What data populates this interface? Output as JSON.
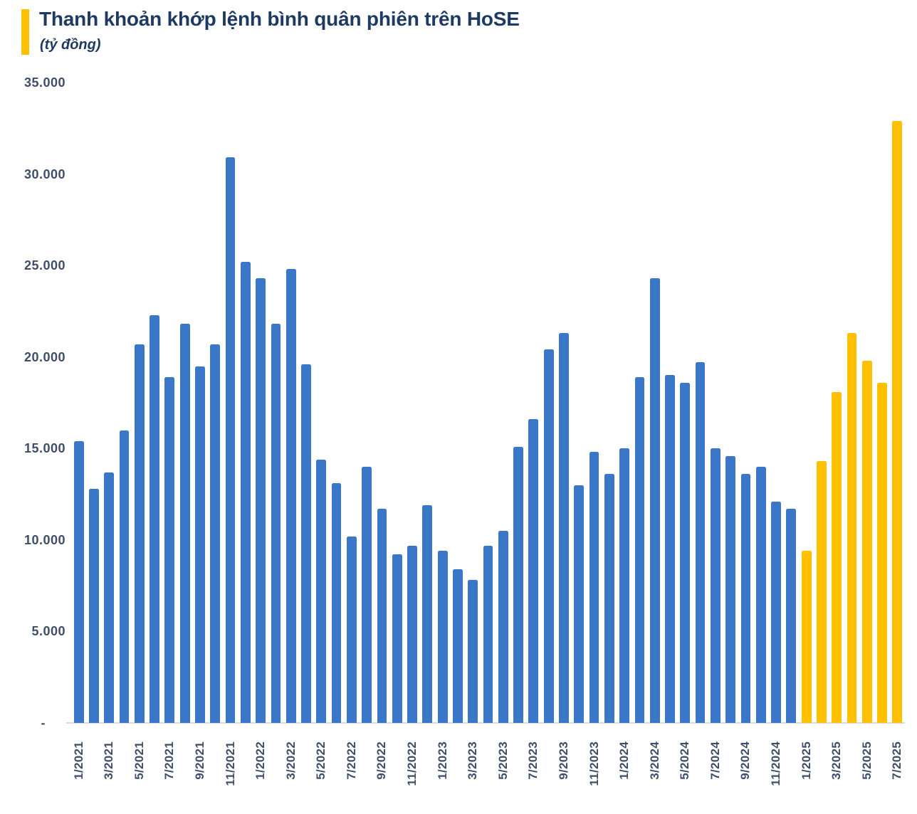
{
  "header": {
    "title": "Thanh khoản khớp lệnh bình quân phiên trên HoSE",
    "subtitle": "(tỷ đồng)",
    "accent_color": "#FFC003"
  },
  "chart_data": {
    "type": "bar",
    "title": "Thanh khoản khớp lệnh bình quân phiên trên HoSE",
    "unit": "tỷ đồng",
    "grid": "off",
    "legend": "none",
    "ylim": [
      0,
      35000
    ],
    "y_tick_interval": 5000,
    "y_tick_values": [
      35000,
      30000,
      25000,
      20000,
      15000,
      10000,
      5000,
      0
    ],
    "y_tick_labels": [
      "35.000",
      "30.000",
      "25.000",
      "20.000",
      "15.000",
      "10.000",
      "5.000",
      "-"
    ],
    "x_tick_labels": [
      "1/2021",
      "3/2021",
      "5/2021",
      "7/2021",
      "9/2021",
      "11/2021",
      "1/2022",
      "3/2022",
      "5/2022",
      "7/2022",
      "9/2022",
      "11/2022",
      "1/2023",
      "3/2023",
      "5/2023",
      "7/2023",
      "9/2023",
      "11/2023",
      "1/2024",
      "3/2024",
      "5/2024",
      "7/2024",
      "9/2024",
      "11/2024",
      "1/2025",
      "3/2025",
      "5/2025",
      "7/2025"
    ],
    "categories": [
      "1/2021",
      "2/2021",
      "3/2021",
      "4/2021",
      "5/2021",
      "6/2021",
      "7/2021",
      "8/2021",
      "9/2021",
      "10/2021",
      "11/2021",
      "12/2021",
      "1/2022",
      "2/2022",
      "3/2022",
      "4/2022",
      "5/2022",
      "6/2022",
      "7/2022",
      "8/2022",
      "9/2022",
      "10/2022",
      "11/2022",
      "12/2022",
      "1/2023",
      "2/2023",
      "3/2023",
      "4/2023",
      "5/2023",
      "6/2023",
      "7/2023",
      "8/2023",
      "9/2023",
      "10/2023",
      "11/2023",
      "12/2023",
      "1/2024",
      "2/2024",
      "3/2024",
      "4/2024",
      "5/2024",
      "6/2024",
      "7/2024",
      "8/2024",
      "9/2024",
      "10/2024",
      "11/2024",
      "12/2024",
      "1/2025",
      "2/2025",
      "3/2025",
      "4/2025",
      "5/2025",
      "6/2025",
      "7/2025"
    ],
    "values": [
      15400,
      12800,
      13700,
      16000,
      20700,
      22300,
      18900,
      21800,
      19500,
      20700,
      30900,
      25200,
      24300,
      21800,
      24800,
      19600,
      14400,
      13100,
      10200,
      14000,
      11700,
      9200,
      9700,
      11900,
      9400,
      8400,
      7800,
      9700,
      10500,
      15100,
      16600,
      20400,
      21300,
      13000,
      14800,
      13600,
      15000,
      18900,
      24300,
      19000,
      18600,
      19700,
      15000,
      14600,
      13600,
      14000,
      12100,
      11700,
      9400,
      14300,
      18100,
      21300,
      19800,
      18600,
      32900
    ],
    "default_bar_color": "#3A77C9",
    "highlight": {
      "start_index": 48,
      "start_category": "1/2025",
      "color": "#FFC003"
    },
    "axis_label_color": "#3E4E68",
    "axis_line_color": "#DBD9D4"
  }
}
